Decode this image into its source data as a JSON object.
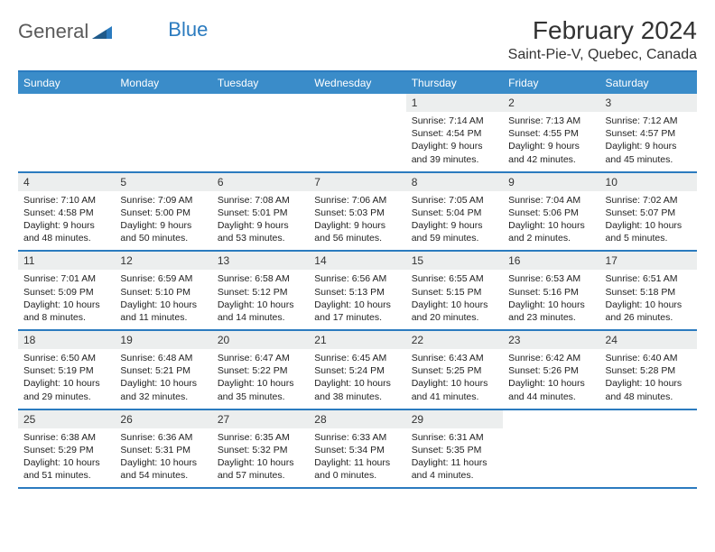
{
  "brand": {
    "text1": "General",
    "text2": "Blue"
  },
  "title": "February 2024",
  "subtitle": "Saint-Pie-V, Quebec, Canada",
  "colors": {
    "header_bar": "#3a8cc9",
    "rule": "#2b7bbf",
    "daynum_bg": "#eceeee",
    "text": "#222222",
    "brand_gray": "#5a5a5a",
    "brand_blue": "#2b7bbf"
  },
  "dow": [
    "Sunday",
    "Monday",
    "Tuesday",
    "Wednesday",
    "Thursday",
    "Friday",
    "Saturday"
  ],
  "weeks": [
    [
      {
        "n": "",
        "sr": "",
        "ss": "",
        "dl": ""
      },
      {
        "n": "",
        "sr": "",
        "ss": "",
        "dl": ""
      },
      {
        "n": "",
        "sr": "",
        "ss": "",
        "dl": ""
      },
      {
        "n": "",
        "sr": "",
        "ss": "",
        "dl": ""
      },
      {
        "n": "1",
        "sr": "7:14 AM",
        "ss": "4:54 PM",
        "dl": "9 hours and 39 minutes."
      },
      {
        "n": "2",
        "sr": "7:13 AM",
        "ss": "4:55 PM",
        "dl": "9 hours and 42 minutes."
      },
      {
        "n": "3",
        "sr": "7:12 AM",
        "ss": "4:57 PM",
        "dl": "9 hours and 45 minutes."
      }
    ],
    [
      {
        "n": "4",
        "sr": "7:10 AM",
        "ss": "4:58 PM",
        "dl": "9 hours and 48 minutes."
      },
      {
        "n": "5",
        "sr": "7:09 AM",
        "ss": "5:00 PM",
        "dl": "9 hours and 50 minutes."
      },
      {
        "n": "6",
        "sr": "7:08 AM",
        "ss": "5:01 PM",
        "dl": "9 hours and 53 minutes."
      },
      {
        "n": "7",
        "sr": "7:06 AM",
        "ss": "5:03 PM",
        "dl": "9 hours and 56 minutes."
      },
      {
        "n": "8",
        "sr": "7:05 AM",
        "ss": "5:04 PM",
        "dl": "9 hours and 59 minutes."
      },
      {
        "n": "9",
        "sr": "7:04 AM",
        "ss": "5:06 PM",
        "dl": "10 hours and 2 minutes."
      },
      {
        "n": "10",
        "sr": "7:02 AM",
        "ss": "5:07 PM",
        "dl": "10 hours and 5 minutes."
      }
    ],
    [
      {
        "n": "11",
        "sr": "7:01 AM",
        "ss": "5:09 PM",
        "dl": "10 hours and 8 minutes."
      },
      {
        "n": "12",
        "sr": "6:59 AM",
        "ss": "5:10 PM",
        "dl": "10 hours and 11 minutes."
      },
      {
        "n": "13",
        "sr": "6:58 AM",
        "ss": "5:12 PM",
        "dl": "10 hours and 14 minutes."
      },
      {
        "n": "14",
        "sr": "6:56 AM",
        "ss": "5:13 PM",
        "dl": "10 hours and 17 minutes."
      },
      {
        "n": "15",
        "sr": "6:55 AM",
        "ss": "5:15 PM",
        "dl": "10 hours and 20 minutes."
      },
      {
        "n": "16",
        "sr": "6:53 AM",
        "ss": "5:16 PM",
        "dl": "10 hours and 23 minutes."
      },
      {
        "n": "17",
        "sr": "6:51 AM",
        "ss": "5:18 PM",
        "dl": "10 hours and 26 minutes."
      }
    ],
    [
      {
        "n": "18",
        "sr": "6:50 AM",
        "ss": "5:19 PM",
        "dl": "10 hours and 29 minutes."
      },
      {
        "n": "19",
        "sr": "6:48 AM",
        "ss": "5:21 PM",
        "dl": "10 hours and 32 minutes."
      },
      {
        "n": "20",
        "sr": "6:47 AM",
        "ss": "5:22 PM",
        "dl": "10 hours and 35 minutes."
      },
      {
        "n": "21",
        "sr": "6:45 AM",
        "ss": "5:24 PM",
        "dl": "10 hours and 38 minutes."
      },
      {
        "n": "22",
        "sr": "6:43 AM",
        "ss": "5:25 PM",
        "dl": "10 hours and 41 minutes."
      },
      {
        "n": "23",
        "sr": "6:42 AM",
        "ss": "5:26 PM",
        "dl": "10 hours and 44 minutes."
      },
      {
        "n": "24",
        "sr": "6:40 AM",
        "ss": "5:28 PM",
        "dl": "10 hours and 48 minutes."
      }
    ],
    [
      {
        "n": "25",
        "sr": "6:38 AM",
        "ss": "5:29 PM",
        "dl": "10 hours and 51 minutes."
      },
      {
        "n": "26",
        "sr": "6:36 AM",
        "ss": "5:31 PM",
        "dl": "10 hours and 54 minutes."
      },
      {
        "n": "27",
        "sr": "6:35 AM",
        "ss": "5:32 PM",
        "dl": "10 hours and 57 minutes."
      },
      {
        "n": "28",
        "sr": "6:33 AM",
        "ss": "5:34 PM",
        "dl": "11 hours and 0 minutes."
      },
      {
        "n": "29",
        "sr": "6:31 AM",
        "ss": "5:35 PM",
        "dl": "11 hours and 4 minutes."
      },
      {
        "n": "",
        "sr": "",
        "ss": "",
        "dl": ""
      },
      {
        "n": "",
        "sr": "",
        "ss": "",
        "dl": ""
      }
    ]
  ],
  "labels": {
    "sunrise": "Sunrise: ",
    "sunset": "Sunset: ",
    "daylight": "Daylight: "
  }
}
